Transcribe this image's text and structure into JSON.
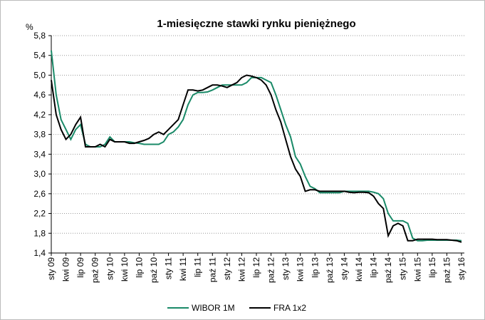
{
  "chart_data": {
    "type": "line",
    "title": "1-miesięczne stawki rynku pieniężnego",
    "y_unit": "%",
    "categories": [
      "sty 09",
      null,
      null,
      "kwi 09",
      null,
      null,
      "lip 09",
      null,
      null,
      "paź 09",
      null,
      null,
      "sty 10",
      null,
      null,
      "kwi 10",
      null,
      null,
      "lip 10",
      null,
      null,
      "paź 10",
      null,
      null,
      "sty 11",
      null,
      null,
      "kwi 11",
      null,
      null,
      "lip 11",
      null,
      null,
      "paź 11",
      null,
      null,
      "sty 12",
      null,
      null,
      "kwi 12",
      null,
      null,
      "lip 12",
      null,
      null,
      "paź 12",
      null,
      null,
      "sty 13",
      null,
      null,
      "kwi 13",
      null,
      null,
      "lip 13",
      null,
      null,
      "paź 13",
      null,
      null,
      "sty 14",
      null,
      null,
      "kwi 14",
      null,
      null,
      "lip 14",
      null,
      null,
      "paź 14",
      null,
      null,
      "sty 15",
      null,
      null,
      "kwi 15",
      null,
      null,
      "lip 15",
      null,
      null,
      "paź 15",
      null,
      null,
      "sty 16"
    ],
    "series": [
      {
        "name": "WIBOR 1M",
        "color": "#1a8a68",
        "values": [
          5.5,
          4.6,
          4.1,
          3.9,
          3.7,
          3.9,
          4.0,
          3.6,
          3.55,
          3.55,
          3.55,
          3.6,
          3.75,
          3.65,
          3.65,
          3.65,
          3.65,
          3.63,
          3.62,
          3.6,
          3.6,
          3.6,
          3.6,
          3.65,
          3.8,
          3.85,
          3.95,
          4.1,
          4.4,
          4.6,
          4.65,
          4.65,
          4.66,
          4.7,
          4.75,
          4.8,
          4.8,
          4.8,
          4.8,
          4.8,
          4.85,
          4.95,
          4.95,
          4.95,
          4.9,
          4.85,
          4.6,
          4.3,
          4.0,
          3.75,
          3.35,
          3.2,
          2.95,
          2.75,
          2.7,
          2.62,
          2.62,
          2.62,
          2.62,
          2.62,
          2.65,
          2.65,
          2.65,
          2.65,
          2.65,
          2.65,
          2.63,
          2.6,
          2.5,
          2.2,
          2.05,
          2.05,
          2.05,
          2.0,
          1.7,
          1.65,
          1.65,
          1.66,
          1.66,
          1.66,
          1.66,
          1.66,
          1.66,
          1.66,
          1.65
        ]
      },
      {
        "name": "FRA 1x2",
        "color": "#000000",
        "values": [
          4.9,
          4.2,
          3.9,
          3.7,
          3.8,
          4.0,
          4.15,
          3.55,
          3.55,
          3.55,
          3.6,
          3.55,
          3.7,
          3.65,
          3.65,
          3.65,
          3.62,
          3.62,
          3.65,
          3.68,
          3.72,
          3.8,
          3.85,
          3.8,
          3.9,
          4.0,
          4.1,
          4.4,
          4.7,
          4.7,
          4.68,
          4.7,
          4.75,
          4.8,
          4.8,
          4.78,
          4.75,
          4.8,
          4.85,
          4.95,
          5.0,
          4.98,
          4.95,
          4.9,
          4.8,
          4.6,
          4.3,
          4.05,
          3.7,
          3.35,
          3.1,
          2.95,
          2.65,
          2.68,
          2.68,
          2.65,
          2.65,
          2.65,
          2.65,
          2.65,
          2.65,
          2.63,
          2.62,
          2.63,
          2.63,
          2.62,
          2.55,
          2.4,
          2.3,
          1.75,
          1.95,
          2.0,
          1.95,
          1.65,
          1.65,
          1.68,
          1.68,
          1.68,
          1.68,
          1.67,
          1.67,
          1.67,
          1.66,
          1.65,
          1.62
        ]
      }
    ],
    "ylim": [
      1.4,
      5.8
    ],
    "yticks": [
      {
        "value": 1.4,
        "label": "1,4"
      },
      {
        "value": 1.8,
        "label": "1,8"
      },
      {
        "value": 2.2,
        "label": "2,2"
      },
      {
        "value": 2.6,
        "label": "2,6"
      },
      {
        "value": 3.0,
        "label": "3,0"
      },
      {
        "value": 3.4,
        "label": "3,4"
      },
      {
        "value": 3.8,
        "label": "3,8"
      },
      {
        "value": 4.2,
        "label": "4,2"
      },
      {
        "value": 4.6,
        "label": "4,6"
      },
      {
        "value": 5.0,
        "label": "5,0"
      },
      {
        "value": 5.4,
        "label": "5,4"
      },
      {
        "value": 5.8,
        "label": "5,8"
      }
    ],
    "grid": true,
    "legend": "bottom"
  }
}
